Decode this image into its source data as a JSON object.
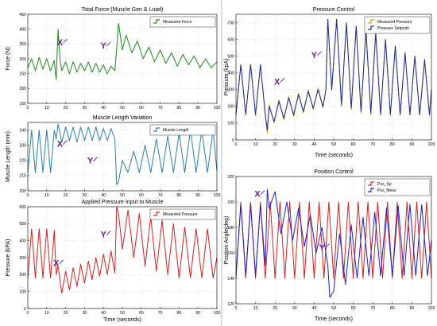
{
  "colors": {
    "background": "#ffffff",
    "plot_bg": "#ffffff",
    "grid": "#d9d9d9",
    "axis": "#000000",
    "force": "#1a8a1a",
    "length": "#2a7fa8",
    "pressure_input": "#d42020",
    "measured_pressure": "#c8a000",
    "pressure_setpoint": "#1c2a9a",
    "pos_sp": "#d42020",
    "pos_meas": "#2020c0",
    "marker": "#6a1a8a",
    "marker_arrow": "#3344cc"
  },
  "chart_data": [
    {
      "id": "total-force",
      "type": "line",
      "title": "Total Force (Muscle Gen & Load)",
      "xlabel": "",
      "ylabel": "Force (N)",
      "xlim": [
        0,
        100
      ],
      "ylim": [
        150,
        450
      ],
      "xticks": [
        0,
        10,
        20,
        30,
        40,
        50,
        60,
        70,
        80,
        90,
        100
      ],
      "yticks": [
        150,
        200,
        250,
        300,
        350,
        400,
        450
      ],
      "grid": true,
      "legend_position": "top-right",
      "series": [
        {
          "name": "Measured Force",
          "color_key": "force",
          "x": [
            0,
            2,
            4,
            6,
            8,
            10,
            12,
            14,
            15,
            16,
            17,
            18,
            20,
            22,
            24,
            26,
            28,
            30,
            32,
            34,
            36,
            38,
            40,
            42,
            44,
            46,
            47,
            48,
            50,
            52,
            55,
            58,
            61,
            64,
            67,
            70,
            73,
            76,
            79,
            82,
            85,
            88,
            91,
            94,
            97,
            100
          ],
          "y": [
            270,
            300,
            260,
            305,
            265,
            300,
            260,
            295,
            230,
            400,
            300,
            260,
            290,
            250,
            290,
            255,
            285,
            260,
            290,
            255,
            285,
            255,
            280,
            250,
            275,
            260,
            335,
            420,
            330,
            380,
            320,
            360,
            300,
            340,
            290,
            330,
            285,
            320,
            275,
            315,
            280,
            310,
            270,
            300,
            270,
            290
          ]
        }
      ],
      "annotations": [
        {
          "text": "X",
          "x": 17,
          "y": 345
        },
        {
          "text": "Y",
          "x": 40,
          "y": 335
        }
      ]
    },
    {
      "id": "muscle-length",
      "type": "line",
      "title": "Muscle Length Variation",
      "xlabel": "",
      "ylabel": "Muscle Length (mm)",
      "xlim": [
        0,
        100
      ],
      "ylim": [
        200,
        245
      ],
      "xticks": [
        0,
        10,
        20,
        30,
        40,
        50,
        60,
        70,
        80,
        90,
        100
      ],
      "yticks": [
        200,
        210,
        220,
        230,
        240
      ],
      "grid": true,
      "legend_position": "top-right",
      "series": [
        {
          "name": "Muscle Length",
          "color_key": "length",
          "x": [
            0,
            2,
            4,
            6,
            8,
            10,
            12,
            14,
            15,
            16,
            18,
            20,
            22,
            24,
            26,
            28,
            30,
            32,
            34,
            36,
            38,
            40,
            42,
            44,
            46,
            47,
            48,
            50,
            53,
            56,
            59,
            62,
            65,
            68,
            71,
            74,
            77,
            80,
            83,
            86,
            89,
            92,
            95,
            98,
            100
          ],
          "y": [
            212,
            240,
            212,
            240,
            212,
            240,
            212,
            240,
            234,
            244,
            232,
            242,
            233,
            242,
            232,
            242,
            233,
            242,
            233,
            242,
            233,
            241,
            233,
            241,
            234,
            204,
            206,
            220,
            212,
            226,
            212,
            230,
            212,
            234,
            212,
            236,
            212,
            238,
            212,
            240,
            212,
            240,
            212,
            240,
            213
          ]
        }
      ],
      "annotations": [
        {
          "text": "X",
          "x": 17,
          "y": 229
        },
        {
          "text": "Y",
          "x": 33,
          "y": 218
        }
      ]
    },
    {
      "id": "applied-pressure",
      "type": "line",
      "title": "Applied Pressure Input to Muscle",
      "xlabel": "Time (seconds)",
      "ylabel": "Pressure (kPA)",
      "xlim": [
        0,
        100
      ],
      "ylim": [
        0,
        600
      ],
      "xticks": [
        0,
        10,
        20,
        30,
        40,
        50,
        60,
        70,
        80,
        90,
        100
      ],
      "yticks": [
        0,
        100,
        200,
        300,
        400,
        500,
        600
      ],
      "grid": true,
      "legend_position": "top-right",
      "series": [
        {
          "name": "Measured Pressure",
          "color_key": "pressure_input",
          "x": [
            0,
            2,
            4,
            6,
            8,
            10,
            12,
            14,
            15,
            16,
            18,
            20,
            22,
            24,
            26,
            28,
            30,
            32,
            34,
            36,
            38,
            40,
            42,
            44,
            46,
            47,
            48,
            50,
            53,
            56,
            59,
            62,
            65,
            68,
            71,
            74,
            77,
            80,
            83,
            86,
            89,
            92,
            95,
            98,
            100
          ],
          "y": [
            180,
            470,
            180,
            470,
            180,
            470,
            180,
            460,
            200,
            250,
            90,
            220,
            110,
            240,
            130,
            260,
            150,
            280,
            170,
            300,
            190,
            320,
            200,
            340,
            210,
            600,
            560,
            350,
            580,
            300,
            560,
            250,
            540,
            220,
            520,
            200,
            500,
            180,
            480,
            180,
            470,
            180,
            470,
            180,
            300
          ]
        }
      ],
      "annotations": [
        {
          "text": "X",
          "x": 15,
          "y": 250
        },
        {
          "text": "Y",
          "x": 40,
          "y": 420
        }
      ]
    },
    {
      "id": "pressure-control",
      "type": "line",
      "title": "Pressure Control",
      "xlabel": "Time (seconds)",
      "ylabel": "Pressure (kpA)",
      "xlim": [
        0,
        100
      ],
      "ylim": [
        0,
        750
      ],
      "xticks": [
        0,
        10,
        20,
        30,
        40,
        50,
        60,
        70,
        80,
        90,
        100
      ],
      "yticks": [
        0,
        100,
        200,
        300,
        400,
        500,
        600,
        700
      ],
      "grid": true,
      "legend_position": "top-right",
      "series": [
        {
          "name": "Measured Pressure",
          "color_key": "measured_pressure",
          "x": [
            0,
            2.5,
            5,
            7.5,
            10,
            12.5,
            15,
            16,
            17,
            19.5,
            22,
            24.5,
            27,
            29.5,
            32,
            34.5,
            37,
            39.5,
            42,
            44.5,
            46,
            47,
            49,
            51.5,
            54,
            56.5,
            59,
            61.5,
            64,
            66.5,
            69,
            71.5,
            74,
            76.5,
            79,
            81.5,
            84,
            86.5,
            89,
            91.5,
            94,
            96.5,
            99,
            100
          ],
          "y": [
            150,
            450,
            150,
            450,
            150,
            450,
            150,
            40,
            210,
            100,
            240,
            120,
            260,
            140,
            280,
            160,
            300,
            180,
            310,
            190,
            300,
            720,
            300,
            720,
            200,
            700,
            180,
            680,
            160,
            660,
            150,
            640,
            150,
            600,
            150,
            560,
            150,
            520,
            150,
            500,
            150,
            480,
            150,
            300
          ]
        },
        {
          "name": "Pressure Setpoint",
          "color_key": "pressure_setpoint",
          "x": [
            0,
            2.5,
            5,
            7.5,
            10,
            12.5,
            15,
            16,
            17,
            19.5,
            22,
            24.5,
            27,
            29.5,
            32,
            34.5,
            37,
            39.5,
            42,
            44.5,
            46,
            47,
            49,
            51.5,
            54,
            56.5,
            59,
            61.5,
            64,
            66.5,
            69,
            71.5,
            74,
            76.5,
            79,
            81.5,
            84,
            86.5,
            89,
            91.5,
            94,
            96.5,
            99,
            100
          ],
          "y": [
            150,
            450,
            150,
            450,
            150,
            450,
            150,
            60,
            200,
            110,
            230,
            130,
            250,
            150,
            270,
            170,
            290,
            190,
            300,
            200,
            300,
            720,
            300,
            720,
            210,
            700,
            190,
            680,
            170,
            660,
            160,
            640,
            150,
            600,
            150,
            560,
            150,
            520,
            150,
            500,
            150,
            480,
            150,
            300
          ]
        }
      ],
      "annotations": [
        {
          "text": "X",
          "x": 21,
          "y": 330
        },
        {
          "text": "Y",
          "x": 40,
          "y": 490
        }
      ]
    },
    {
      "id": "position-control",
      "type": "line",
      "title": "Position Control",
      "xlabel": "Time (seconds)",
      "ylabel": "Position Angle(deg)",
      "xlim": [
        0,
        100
      ],
      "ylim": [
        120,
        220
      ],
      "xticks": [
        0,
        10,
        20,
        30,
        40,
        50,
        60,
        70,
        80,
        90,
        100
      ],
      "yticks": [
        120,
        140,
        160,
        180,
        200,
        220
      ],
      "grid": true,
      "legend_position": "top-right",
      "series": [
        {
          "name": "Pos_Sp",
          "color_key": "pos_sp",
          "x": [
            0,
            2.5,
            5,
            7.5,
            10,
            12.5,
            15,
            17.5,
            20,
            22.5,
            25,
            27.5,
            30,
            32.5,
            35,
            37.5,
            40,
            42.5,
            45,
            47.5,
            50,
            52.5,
            55,
            57.5,
            60,
            62.5,
            65,
            67.5,
            70,
            72.5,
            75,
            77.5,
            80,
            82.5,
            85,
            87.5,
            90,
            92.5,
            95,
            97.5,
            100
          ],
          "y": [
            140,
            200,
            140,
            200,
            140,
            200,
            140,
            200,
            140,
            200,
            140,
            200,
            140,
            200,
            140,
            200,
            140,
            200,
            140,
            200,
            140,
            200,
            140,
            200,
            140,
            200,
            140,
            200,
            140,
            200,
            140,
            200,
            140,
            200,
            140,
            200,
            140,
            200,
            140,
            200,
            140
          ]
        },
        {
          "name": "Pos_Meas",
          "color_key": "pos_meas",
          "x": [
            0,
            2.5,
            5,
            7.5,
            10,
            12.5,
            15,
            16,
            17,
            20,
            23,
            26,
            29,
            32,
            35,
            38,
            41,
            44,
            47,
            48,
            50,
            53,
            56,
            59,
            62,
            65,
            68,
            71,
            74,
            77,
            80,
            83,
            86,
            89,
            92,
            95,
            98,
            100
          ],
          "y": [
            142,
            198,
            142,
            198,
            142,
            198,
            150,
            210,
            195,
            208,
            175,
            200,
            170,
            195,
            165,
            190,
            160,
            180,
            150,
            125,
            130,
            175,
            135,
            182,
            140,
            188,
            142,
            192,
            142,
            195,
            142,
            197,
            142,
            198,
            142,
            198,
            142,
            170
          ]
        }
      ],
      "annotations": [
        {
          "text": "X",
          "x": 11,
          "y": 204
        },
        {
          "text": "Y",
          "x": 44,
          "y": 162
        }
      ]
    }
  ]
}
